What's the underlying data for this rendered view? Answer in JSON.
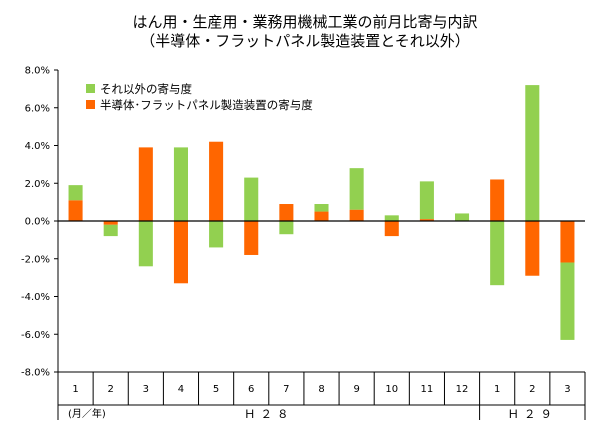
{
  "chart_data": {
    "type": "bar",
    "title_line1": "はん用・生産用・業務用機械工業の前月比寄与内訳",
    "title_line2": "（半導体・フラットパネル製造装置とそれ以外）",
    "categories": [
      "1",
      "2",
      "3",
      "4",
      "5",
      "6",
      "7",
      "8",
      "9",
      "10",
      "11",
      "12",
      "1",
      "2",
      "3"
    ],
    "series": [
      {
        "name": "それ以外の寄与度",
        "color": "#92D050",
        "values": [
          0.8,
          -0.6,
          -2.4,
          3.9,
          -1.4,
          2.3,
          -0.7,
          0.4,
          2.2,
          0.3,
          2.0,
          0.4,
          -3.4,
          7.2,
          -4.1
        ]
      },
      {
        "name": "半導体･フラットパネル製造装置の寄与度",
        "color": "#FF6600",
        "values": [
          1.1,
          -0.2,
          3.9,
          -3.3,
          4.2,
          -1.8,
          0.9,
          0.5,
          0.6,
          -0.8,
          0.1,
          0.0,
          2.2,
          -2.9,
          -2.2
        ]
      }
    ],
    "y_tick_labels": [
      "8.0%",
      "6.0%",
      "4.0%",
      "2.0%",
      "0.0%",
      "-2.0%",
      "-4.0%",
      "-6.0%",
      "-8.0%"
    ],
    "ylim": [
      -8,
      8
    ],
    "unit_label": "(月／年)",
    "era_labels": [
      "Ｈ２８",
      "Ｈ２９"
    ],
    "legend_position": "top-left",
    "grid": false
  }
}
